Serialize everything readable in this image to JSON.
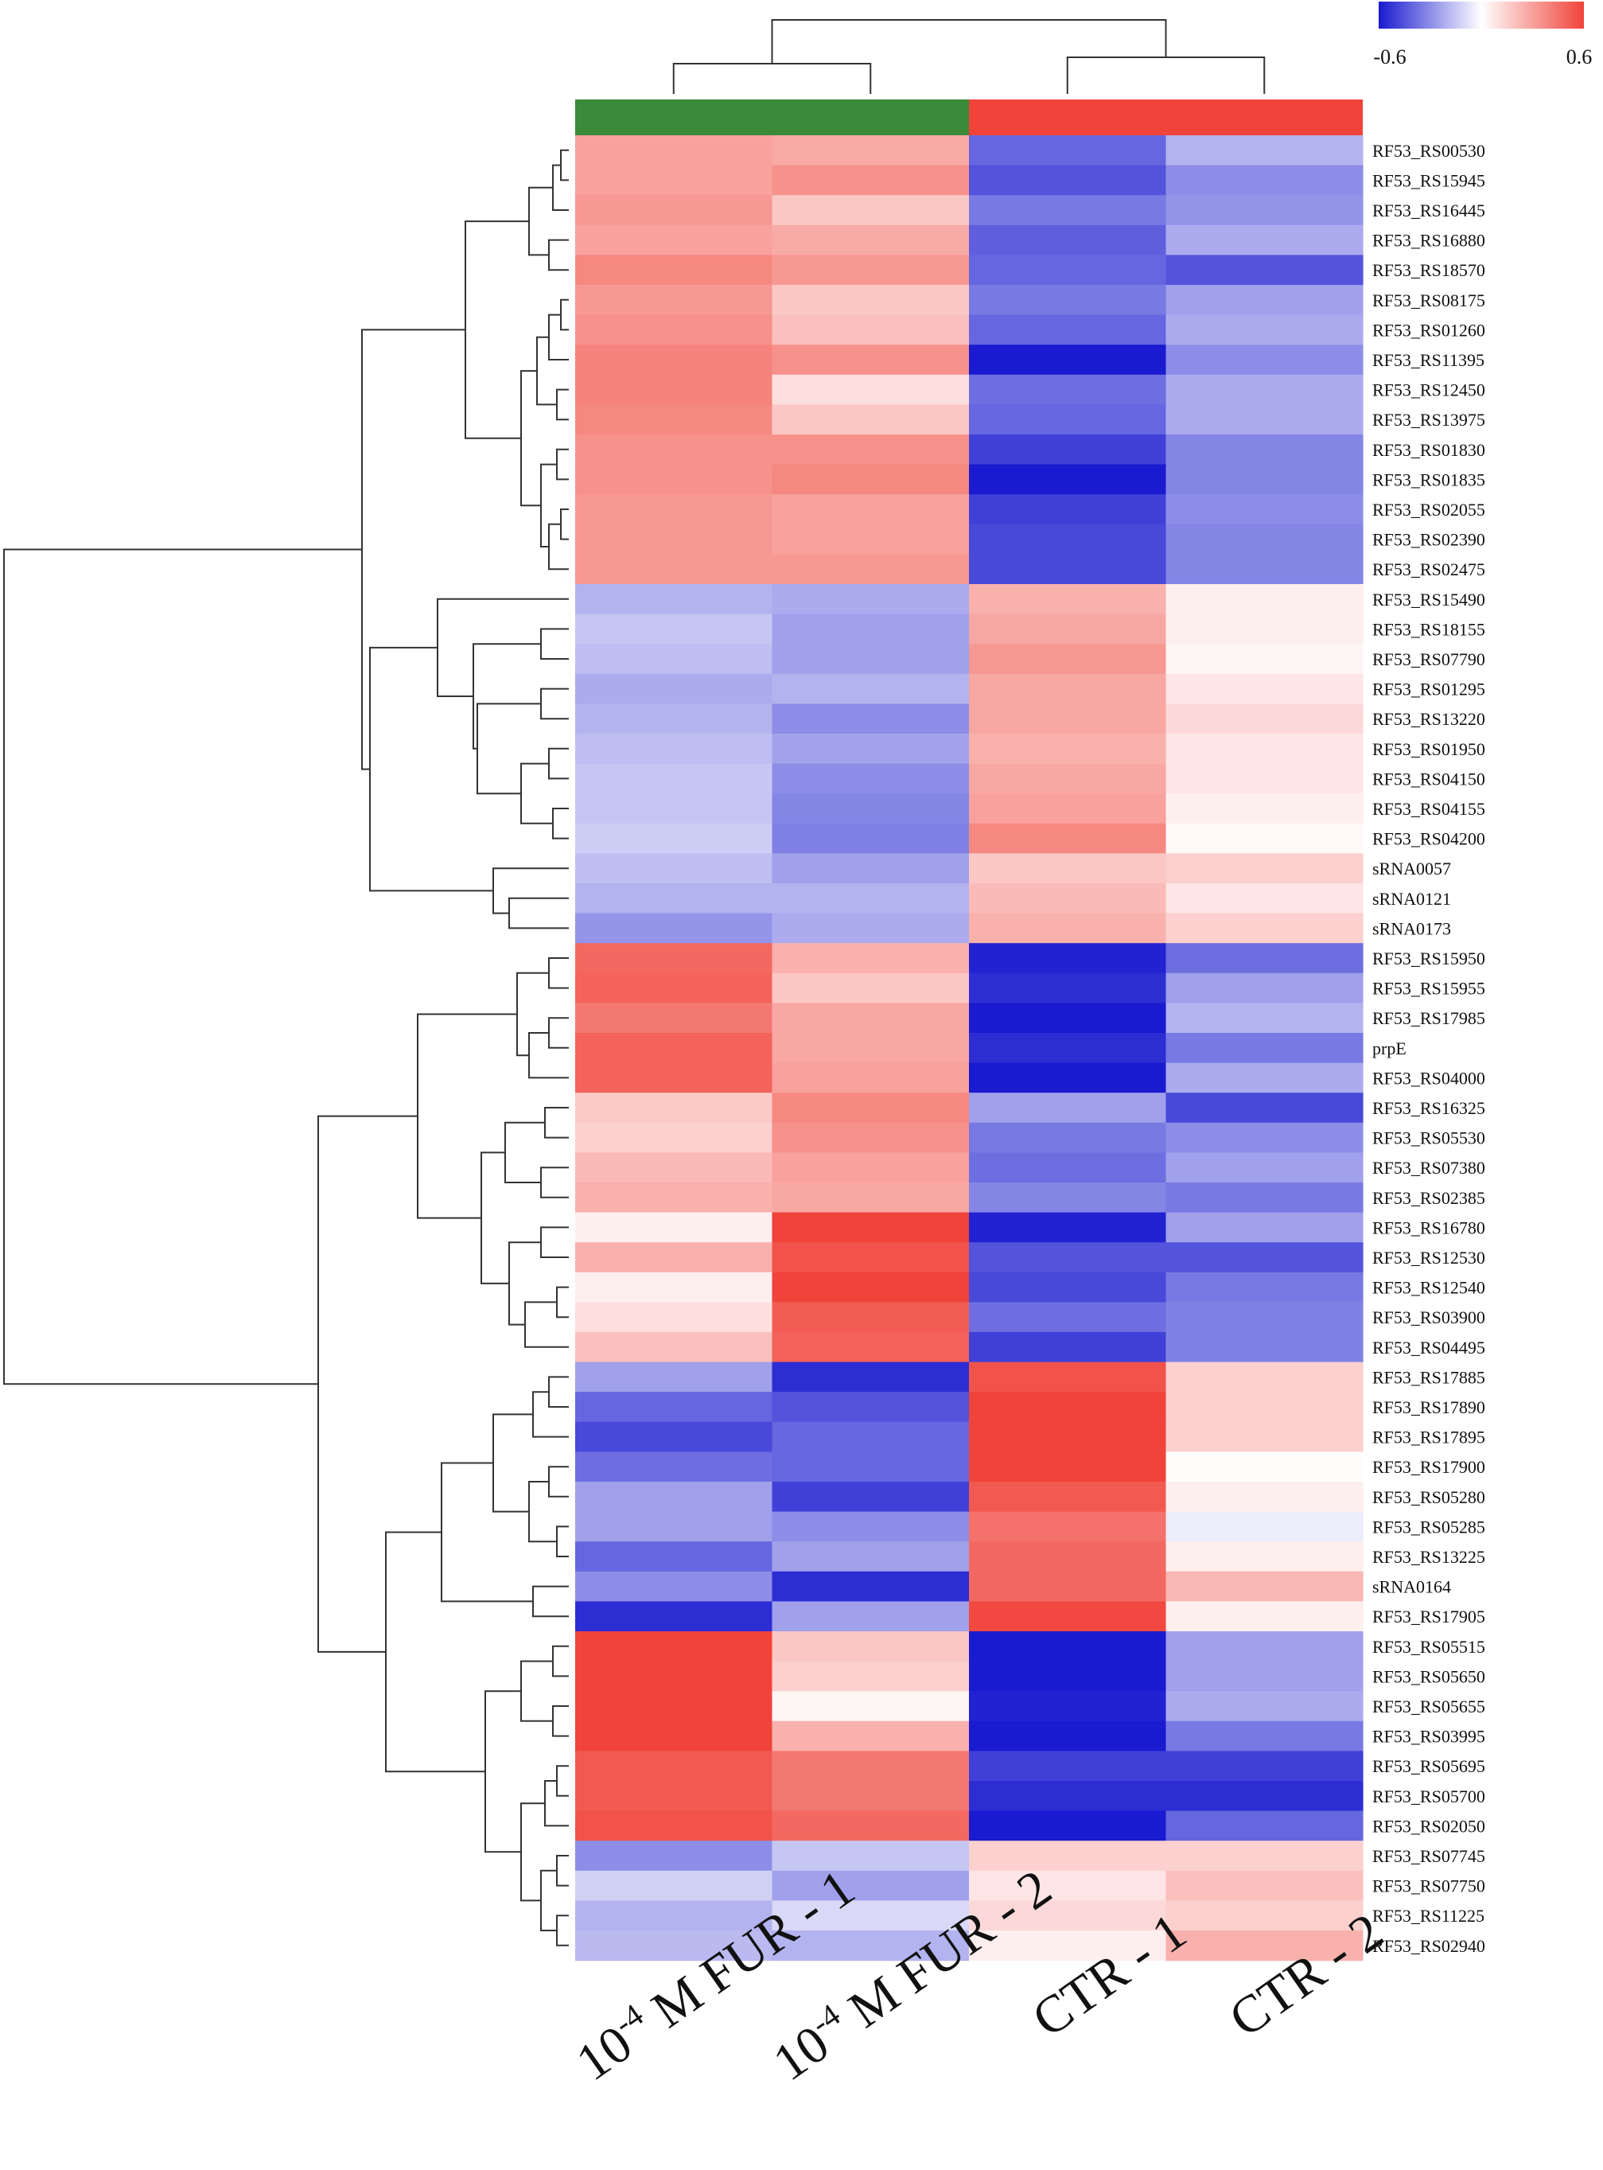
{
  "chart_data": {
    "type": "heatmap",
    "color_scale": {
      "min": -0.6,
      "max": 0.6,
      "min_label": "-0.6",
      "max_label": "0.6",
      "low_color": "#1a1ad0",
      "mid_color": "#ffffff",
      "high_color": "#f0433a"
    },
    "columns": [
      "10-4 M FUR - 1",
      "10-4 M FUR - 2",
      "CTR - 1",
      "CTR - 2"
    ],
    "column_label_parts": [
      {
        "pre": "10",
        "sup": "-4",
        "post": " M FUR - 1"
      },
      {
        "pre": "10",
        "sup": "-4",
        "post": " M FUR - 2"
      },
      {
        "pre": "CTR - 1",
        "sup": "",
        "post": ""
      },
      {
        "pre": "CTR - 2",
        "sup": "",
        "post": ""
      }
    ],
    "column_groups": [
      {
        "columns": [
          0,
          1
        ],
        "color": "#3a8a3a"
      },
      {
        "columns": [
          2,
          3
        ],
        "color": "#f0433a"
      }
    ],
    "rows": [
      {
        "label": "RF53_RS00530",
        "values": [
          0.3,
          0.27,
          -0.4,
          -0.2
        ]
      },
      {
        "label": "RF53_RS15945",
        "values": [
          0.3,
          0.35,
          -0.45,
          -0.3
        ]
      },
      {
        "label": "RF53_RS16445",
        "values": [
          0.33,
          0.18,
          -0.35,
          -0.28
        ]
      },
      {
        "label": "RF53_RS16880",
        "values": [
          0.3,
          0.27,
          -0.42,
          -0.22
        ]
      },
      {
        "label": "RF53_RS18570",
        "values": [
          0.38,
          0.33,
          -0.4,
          -0.45
        ]
      },
      {
        "label": "RF53_RS08175",
        "values": [
          0.33,
          0.18,
          -0.35,
          -0.25
        ]
      },
      {
        "label": "RF53_RS01260",
        "values": [
          0.35,
          0.2,
          -0.4,
          -0.22
        ]
      },
      {
        "label": "RF53_RS11395",
        "values": [
          0.4,
          0.35,
          -0.6,
          -0.3
        ]
      },
      {
        "label": "RF53_RS12450",
        "values": [
          0.4,
          0.1,
          -0.38,
          -0.22
        ]
      },
      {
        "label": "RF53_RS13975",
        "values": [
          0.38,
          0.18,
          -0.4,
          -0.22
        ]
      },
      {
        "label": "RF53_RS01830",
        "values": [
          0.35,
          0.35,
          -0.5,
          -0.32
        ]
      },
      {
        "label": "RF53_RS01835",
        "values": [
          0.35,
          0.38,
          -0.6,
          -0.32
        ]
      },
      {
        "label": "RF53_RS02055",
        "values": [
          0.33,
          0.3,
          -0.5,
          -0.3
        ]
      },
      {
        "label": "RF53_RS02390",
        "values": [
          0.33,
          0.3,
          -0.48,
          -0.32
        ]
      },
      {
        "label": "RF53_RS02475",
        "values": [
          0.33,
          0.33,
          -0.48,
          -0.32
        ]
      },
      {
        "label": "RF53_RS15490",
        "values": [
          -0.2,
          -0.22,
          0.25,
          0.05
        ]
      },
      {
        "label": "RF53_RS18155",
        "values": [
          -0.15,
          -0.25,
          0.28,
          0.05
        ]
      },
      {
        "label": "RF53_RS07790",
        "values": [
          -0.17,
          -0.25,
          0.33,
          0.03
        ]
      },
      {
        "label": "RF53_RS01295",
        "values": [
          -0.22,
          -0.2,
          0.28,
          0.08
        ]
      },
      {
        "label": "RF53_RS13220",
        "values": [
          -0.2,
          -0.3,
          0.28,
          0.12
        ]
      },
      {
        "label": "RF53_RS01950",
        "values": [
          -0.17,
          -0.24,
          0.25,
          0.08
        ]
      },
      {
        "label": "RF53_RS04150",
        "values": [
          -0.15,
          -0.3,
          0.28,
          0.08
        ]
      },
      {
        "label": "RF53_RS04155",
        "values": [
          -0.15,
          -0.32,
          0.3,
          0.05
        ]
      },
      {
        "label": "RF53_RS04200",
        "values": [
          -0.13,
          -0.33,
          0.38,
          0.02
        ]
      },
      {
        "label": "sRNA0057",
        "values": [
          -0.17,
          -0.25,
          0.18,
          0.15
        ]
      },
      {
        "label": "sRNA0121",
        "values": [
          -0.2,
          -0.2,
          0.22,
          0.08
        ]
      },
      {
        "label": "sRNA0173",
        "values": [
          -0.28,
          -0.22,
          0.25,
          0.15
        ]
      },
      {
        "label": "RF53_RS15950",
        "values": [
          0.48,
          0.25,
          -0.58,
          -0.38
        ]
      },
      {
        "label": "RF53_RS15955",
        "values": [
          0.5,
          0.18,
          -0.55,
          -0.25
        ]
      },
      {
        "label": "RF53_RS17985",
        "values": [
          0.43,
          0.28,
          -0.6,
          -0.2
        ]
      },
      {
        "label": "prpE",
        "values": [
          0.5,
          0.28,
          -0.55,
          -0.35
        ]
      },
      {
        "label": "RF53_RS04000",
        "values": [
          0.5,
          0.3,
          -0.7,
          -0.22
        ]
      },
      {
        "label": "RF53_RS16325",
        "values": [
          0.17,
          0.38,
          -0.25,
          -0.48
        ]
      },
      {
        "label": "RF53_RS05530",
        "values": [
          0.15,
          0.35,
          -0.35,
          -0.3
        ]
      },
      {
        "label": "RF53_RS07380",
        "values": [
          0.22,
          0.3,
          -0.38,
          -0.25
        ]
      },
      {
        "label": "RF53_RS02385",
        "values": [
          0.25,
          0.28,
          -0.32,
          -0.35
        ]
      },
      {
        "label": "RF53_RS16780",
        "values": [
          0.05,
          0.63,
          -0.58,
          -0.25
        ]
      },
      {
        "label": "RF53_RS12530",
        "values": [
          0.25,
          0.55,
          -0.45,
          -0.45
        ]
      },
      {
        "label": "RF53_RS12540",
        "values": [
          0.05,
          0.6,
          -0.48,
          -0.35
        ]
      },
      {
        "label": "RF53_RS03900",
        "values": [
          0.1,
          0.52,
          -0.38,
          -0.33
        ]
      },
      {
        "label": "RF53_RS04495",
        "values": [
          0.2,
          0.5,
          -0.5,
          -0.33
        ]
      },
      {
        "label": "RF53_RS17885",
        "values": [
          -0.25,
          -0.55,
          0.55,
          0.15
        ]
      },
      {
        "label": "RF53_RS17890",
        "values": [
          -0.4,
          -0.45,
          0.6,
          0.15
        ]
      },
      {
        "label": "RF53_RS17895",
        "values": [
          -0.48,
          -0.4,
          0.6,
          0.15
        ]
      },
      {
        "label": "RF53_RS17900",
        "values": [
          -0.38,
          -0.4,
          0.63,
          0.01
        ]
      },
      {
        "label": "RF53_RS05280",
        "values": [
          -0.25,
          -0.5,
          0.53,
          0.05
        ]
      },
      {
        "label": "RF53_RS05285",
        "values": [
          -0.25,
          -0.3,
          0.45,
          -0.05
        ]
      },
      {
        "label": "RF53_RS13225",
        "values": [
          -0.4,
          -0.25,
          0.48,
          0.05
        ]
      },
      {
        "label": "sRNA0164",
        "values": [
          -0.3,
          -0.55,
          0.48,
          0.23
        ]
      },
      {
        "label": "RF53_RS17905",
        "values": [
          -0.55,
          -0.25,
          0.58,
          0.05
        ]
      },
      {
        "label": "RF53_RS05515",
        "values": [
          0.7,
          0.18,
          -0.9,
          -0.25
        ]
      },
      {
        "label": "RF53_RS05650",
        "values": [
          0.65,
          0.15,
          -0.75,
          -0.25
        ]
      },
      {
        "label": "RF53_RS05655",
        "values": [
          0.62,
          0.03,
          -0.58,
          -0.22
        ]
      },
      {
        "label": "RF53_RS03995",
        "values": [
          0.6,
          0.25,
          -0.65,
          -0.35
        ]
      },
      {
        "label": "RF53_RS05695",
        "values": [
          0.53,
          0.43,
          -0.5,
          -0.5
        ]
      },
      {
        "label": "RF53_RS05700",
        "values": [
          0.53,
          0.43,
          -0.55,
          -0.55
        ]
      },
      {
        "label": "RF53_RS02050",
        "values": [
          0.55,
          0.48,
          -0.9,
          -0.4
        ]
      },
      {
        "label": "RF53_RS07745",
        "values": [
          -0.3,
          -0.15,
          0.15,
          0.15
        ]
      },
      {
        "label": "RF53_RS07750",
        "values": [
          -0.12,
          -0.25,
          0.08,
          0.2
        ]
      },
      {
        "label": "RF53_RS11225",
        "values": [
          -0.2,
          -0.1,
          0.12,
          0.15
        ]
      },
      {
        "label": "RF53_RS02940",
        "values": [
          -0.18,
          -0.2,
          0.05,
          0.25
        ]
      }
    ]
  }
}
